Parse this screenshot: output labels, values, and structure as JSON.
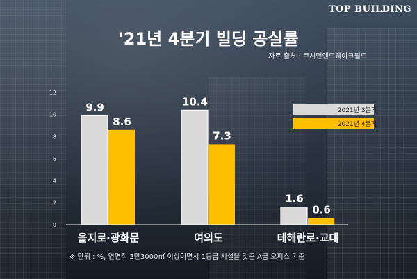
{
  "brand": {
    "logo_text": "TOP BUILDING"
  },
  "title": "'21년 4분기 빌딩 공실률",
  "source": "자료 출처 : 쿠시먼앤드웨이크필드",
  "footnote": "※ 단위 : %, 연면적 3만3000㎡ 이상이면서 1등급 시설을 갖춘 A급 오피스 기준",
  "colors": {
    "series_3q": "#d9d9d9",
    "series_4q": "#ffbf00"
  },
  "chart_data": {
    "type": "bar",
    "categories": [
      "을지로·광화문",
      "여의도",
      "테헤란로·교대"
    ],
    "series": [
      {
        "name": "2021년 3분기",
        "values": [
          9.9,
          10.4,
          1.6
        ]
      },
      {
        "name": "2021년 4분기",
        "values": [
          8.6,
          7.3,
          0.6
        ]
      }
    ],
    "ylim": [
      0,
      12
    ],
    "yticks": [
      0,
      2,
      4,
      6,
      8,
      10,
      12
    ],
    "legend": "top-right",
    "grid": false
  }
}
